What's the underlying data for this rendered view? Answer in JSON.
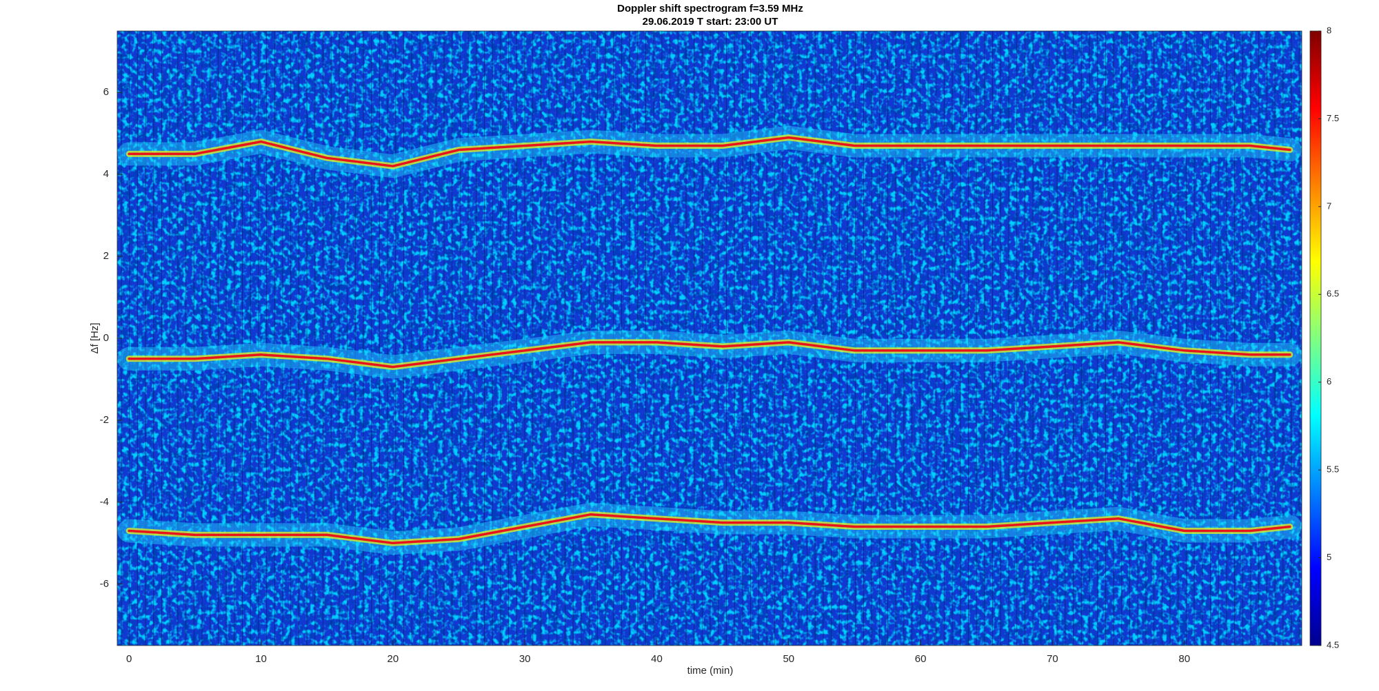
{
  "chart_data": {
    "type": "spectrogram",
    "title": "Doppler shift spectrogram f=3.59 MHz",
    "subtitle": "29.06.2019    T start: 23:00 UT",
    "x_label": "time (min)",
    "y_label": "Δf [Hz]",
    "x": [
      0,
      5,
      10,
      15,
      20,
      25,
      30,
      35,
      40,
      45,
      50,
      55,
      60,
      65,
      70,
      75,
      80,
      85,
      88
    ],
    "series": [
      {
        "color": "#e8141b",
        "values": [
          4.5,
          4.5,
          4.8,
          4.4,
          4.2,
          4.6,
          4.7,
          4.8,
          4.7,
          4.7,
          4.9,
          4.7,
          4.7,
          4.7,
          4.7,
          4.7,
          4.7,
          4.7,
          4.6
        ]
      },
      {
        "color": "#e8141b",
        "values": [
          -0.5,
          -0.5,
          -0.4,
          -0.5,
          -0.7,
          -0.5,
          -0.3,
          -0.1,
          -0.1,
          -0.2,
          -0.1,
          -0.3,
          -0.3,
          -0.3,
          -0.2,
          -0.1,
          -0.3,
          -0.4,
          -0.4
        ]
      },
      {
        "color": "#e8141b",
        "values": [
          -4.7,
          -4.8,
          -4.8,
          -4.8,
          -5.0,
          -4.9,
          -4.6,
          -4.3,
          -4.4,
          -4.5,
          -4.5,
          -4.6,
          -4.6,
          -4.6,
          -4.5,
          -4.4,
          -4.7,
          -4.7,
          -4.6
        ]
      }
    ],
    "xlim": [
      -0.9,
      88.9
    ],
    "xticks": [
      0,
      10,
      20,
      30,
      40,
      50,
      60,
      70,
      80
    ],
    "ylim": [
      -7.5,
      7.5
    ],
    "yticks": [
      -6,
      -4,
      -2,
      0,
      2,
      4,
      6
    ],
    "colorbar": {
      "colormap": "jet",
      "lim": [
        4.5,
        8
      ],
      "ticks": [
        4.5,
        5,
        5.5,
        6,
        6.5,
        7,
        7.5,
        8
      ]
    }
  }
}
